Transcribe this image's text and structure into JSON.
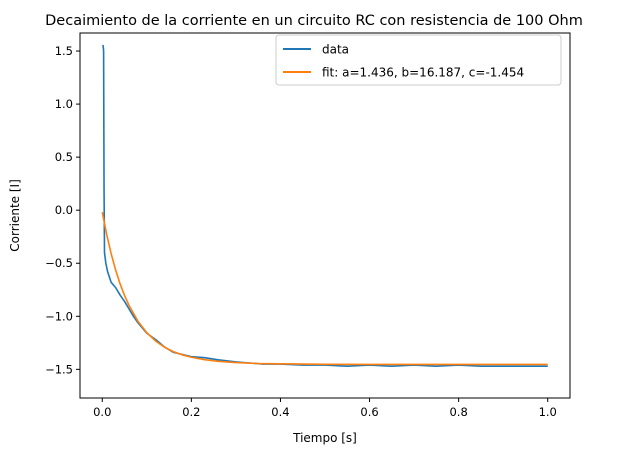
{
  "chart_data": {
    "type": "line",
    "title": "Decaimiento de la corriente en un circuito RC con resistencia de 100 Ohm",
    "xlabel": "Tiempo [s]",
    "ylabel": "Corriente [I]",
    "xlim": [
      -0.05,
      1.05
    ],
    "ylim": [
      -1.77,
      1.67
    ],
    "xticks": [
      0.0,
      0.2,
      0.4,
      0.6,
      0.8,
      1.0
    ],
    "xtick_labels": [
      "0.0",
      "0.2",
      "0.4",
      "0.6",
      "0.8",
      "1.0"
    ],
    "yticks": [
      -1.5,
      -1.0,
      -0.5,
      0.0,
      0.5,
      1.0,
      1.5
    ],
    "ytick_labels": [
      "−1.5",
      "−1.0",
      "−0.5",
      "0.0",
      "0.5",
      "1.0",
      "1.5"
    ],
    "grid": false,
    "legend_position": "upper right",
    "series": [
      {
        "name": "data",
        "color": "#1f77b4",
        "x": [
          0.0,
          0.002,
          0.003,
          0.004,
          0.005,
          0.008,
          0.012,
          0.02,
          0.03,
          0.04,
          0.05,
          0.06,
          0.07,
          0.08,
          0.09,
          0.1,
          0.12,
          0.14,
          0.16,
          0.18,
          0.2,
          0.23,
          0.26,
          0.3,
          0.33,
          0.36,
          0.4,
          0.45,
          0.5,
          0.55,
          0.6,
          0.65,
          0.7,
          0.75,
          0.8,
          0.85,
          0.9,
          0.95,
          1.0
        ],
        "y": [
          1.55,
          1.55,
          1.5,
          0.2,
          -0.4,
          -0.5,
          -0.58,
          -0.68,
          -0.73,
          -0.8,
          -0.86,
          -0.93,
          -1.0,
          -1.06,
          -1.11,
          -1.16,
          -1.22,
          -1.29,
          -1.34,
          -1.36,
          -1.38,
          -1.39,
          -1.41,
          -1.43,
          -1.44,
          -1.45,
          -1.45,
          -1.46,
          -1.46,
          -1.47,
          -1.46,
          -1.47,
          -1.46,
          -1.47,
          -1.46,
          -1.47,
          -1.47,
          -1.47,
          -1.47
        ]
      },
      {
        "name": "fit: a=1.436, b=16.187, c=-1.454",
        "color": "#ff7f0e",
        "x": [
          0.0,
          0.01,
          0.02,
          0.03,
          0.04,
          0.05,
          0.06,
          0.08,
          0.1,
          0.12,
          0.14,
          0.16,
          0.18,
          0.2,
          0.23,
          0.26,
          0.3,
          0.35,
          0.4,
          0.5,
          0.6,
          0.7,
          0.8,
          0.9,
          1.0
        ],
        "y": [
          -0.018,
          -0.231,
          -0.411,
          -0.564,
          -0.694,
          -0.804,
          -0.897,
          -1.046,
          -1.155,
          -1.234,
          -1.292,
          -1.334,
          -1.364,
          -1.386,
          -1.409,
          -1.424,
          -1.436,
          -1.445,
          -1.448,
          -1.453,
          -1.454,
          -1.454,
          -1.454,
          -1.454,
          -1.454
        ]
      }
    ]
  }
}
